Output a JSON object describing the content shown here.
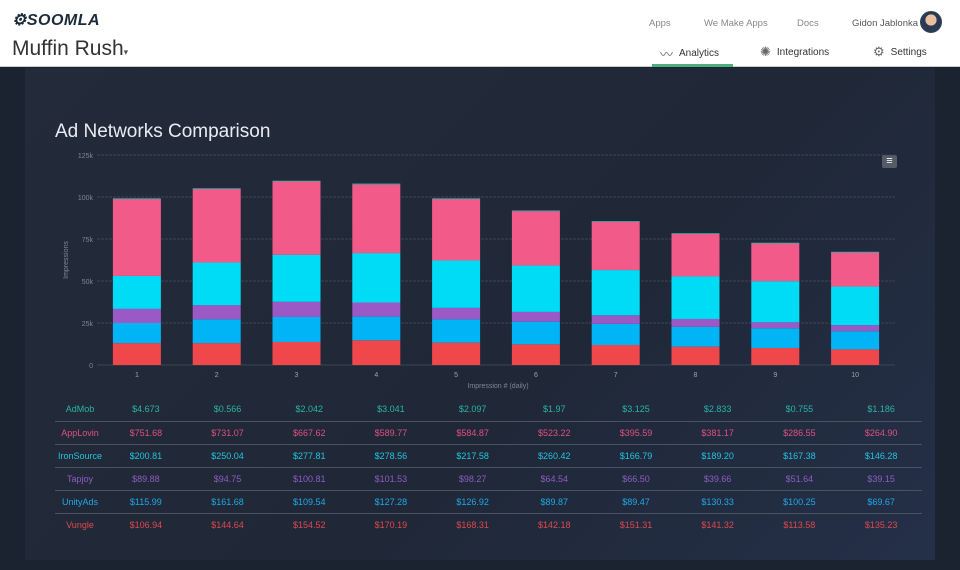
{
  "header": {
    "logo": "SOOMLA",
    "app_title": "Muffin Rush",
    "top_links": [
      "Apps",
      "We Make Apps",
      "Docs"
    ],
    "user_name": "Gidon Jablonka",
    "nav": [
      {
        "label": "Analytics",
        "icon": "chart-line-icon",
        "active": true
      },
      {
        "label": "Integrations",
        "icon": "integrations-burst-icon"
      },
      {
        "label": "Settings",
        "icon": "gear-icon"
      }
    ]
  },
  "chart_data": {
    "type": "bar",
    "stacked": true,
    "title": "Ad Networks Comparison",
    "xlabel": "Impression # (daily)",
    "ylabel": "Impressions",
    "ylim": [
      0,
      125000
    ],
    "yticks": [
      "0",
      "25k",
      "50k",
      "75k",
      "100k",
      "125k"
    ],
    "grid": true,
    "categories": [
      "1",
      "2",
      "3",
      "4",
      "5",
      "6",
      "7",
      "8",
      "9",
      "10"
    ],
    "series": [
      {
        "name": "Vungle",
        "color": "#f0474a",
        "values": [
          13000,
          13000,
          13700,
          14700,
          13300,
          12300,
          11900,
          10900,
          10100,
          9300
        ]
      },
      {
        "name": "UnityAds",
        "color": "#00b4f5",
        "values": [
          12000,
          14200,
          14900,
          14100,
          13900,
          13500,
          12600,
          11800,
          11800,
          10800
        ]
      },
      {
        "name": "Tapjoy",
        "color": "#9b59c6",
        "values": [
          8400,
          8400,
          9000,
          8400,
          6800,
          5800,
          5100,
          4700,
          3500,
          3600
        ]
      },
      {
        "name": "IronSource",
        "color": "#00dcf5",
        "values": [
          19600,
          25400,
          28000,
          29400,
          28200,
          27600,
          26900,
          25300,
          24500,
          23000
        ]
      },
      {
        "name": "AppLovin",
        "color": "#f25a8a",
        "values": [
          45800,
          43800,
          43700,
          41000,
          36600,
          32400,
          28800,
          25400,
          22500,
          20300
        ]
      },
      {
        "name": "AdMob",
        "color": "#2ab3a6",
        "values": [
          400,
          400,
          400,
          400,
          400,
          400,
          400,
          400,
          400,
          400
        ]
      }
    ]
  },
  "table": {
    "rows": [
      {
        "name": "AdMob",
        "color": "#2ab3a6",
        "values": [
          "$4.673",
          "$0.566",
          "$2.042",
          "$3.041",
          "$2.097",
          "$1.97",
          "$3.125",
          "$2.833",
          "$0.755",
          "$1.186"
        ]
      },
      {
        "name": "AppLovin",
        "color": "#e0507f",
        "values": [
          "$751.68",
          "$731.07",
          "$667.62",
          "$589.77",
          "$584.87",
          "$523.22",
          "$395.59",
          "$381.17",
          "$286.55",
          "$264.90"
        ]
      },
      {
        "name": "IronSource",
        "color": "#22c4df",
        "values": [
          "$200.81",
          "$250.04",
          "$277.81",
          "$278.56",
          "$217.58",
          "$260.42",
          "$166.79",
          "$189.20",
          "$167.38",
          "$146.28"
        ]
      },
      {
        "name": "Tapjoy",
        "color": "#8e5cc0",
        "values": [
          "$89.88",
          "$94.75",
          "$100.81",
          "$101.53",
          "$98.27",
          "$64.54",
          "$66.50",
          "$39.66",
          "$51.64",
          "$39.15"
        ]
      },
      {
        "name": "UnityAds",
        "color": "#1ea9e6",
        "values": [
          "$115.99",
          "$161.68",
          "$109.54",
          "$127.28",
          "$126.92",
          "$89.87",
          "$89.47",
          "$130.33",
          "$100.25",
          "$69.67"
        ]
      },
      {
        "name": "Vungle",
        "color": "#e0484b",
        "values": [
          "$106.94",
          "$144.64",
          "$154.52",
          "$170.19",
          "$168.31",
          "$142.18",
          "$151.31",
          "$141.32",
          "$113.58",
          "$135.23"
        ]
      }
    ]
  }
}
